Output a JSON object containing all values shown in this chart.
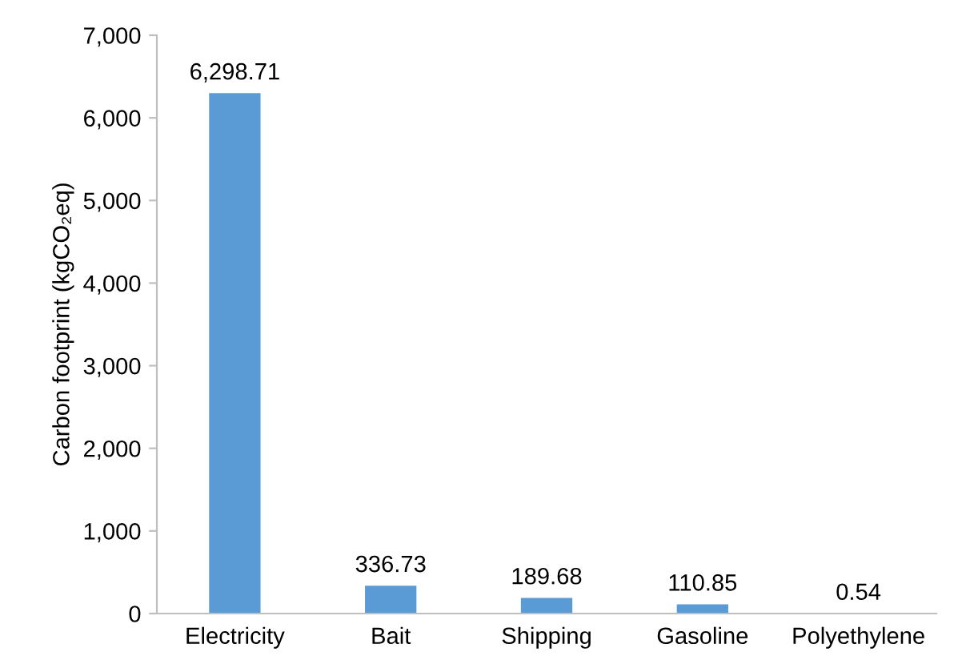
{
  "chart_data": {
    "type": "bar",
    "ylabel": "Carbon footprint (kgCO₂eq)",
    "categories": [
      "Electricity",
      "Bait",
      "Shipping",
      "Gasoline",
      "Polyethylene"
    ],
    "values": [
      6298.71,
      336.73,
      189.68,
      110.85,
      0.54
    ],
    "value_labels": [
      "6,298.71",
      "336.73",
      "189.68",
      "110.85",
      "0.54"
    ],
    "color": "#5b9bd5",
    "ylim": [
      0,
      7000
    ],
    "yticks": [
      0,
      {
        "value": 1000,
        "label": "1,000"
      },
      {
        "value": 2000,
        "label": "2,000"
      },
      {
        "value": 3000,
        "label": "3,000"
      },
      {
        "value": 4000,
        "label": "4,000"
      },
      {
        "value": 5000,
        "label": "5,000"
      },
      {
        "value": 6000,
        "label": "6,000"
      },
      {
        "value": 7000,
        "label": "7,000"
      }
    ],
    "grid": false,
    "legend": false
  }
}
